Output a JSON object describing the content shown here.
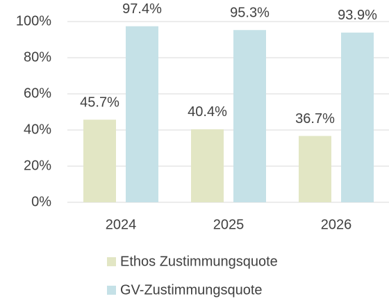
{
  "chart_data": {
    "type": "bar",
    "categories": [
      "2024",
      "2025",
      "2026"
    ],
    "series": [
      {
        "name": "Ethos Zustimmungsquote",
        "color": "#e2e6c4",
        "values": [
          45.7,
          40.4,
          36.7
        ],
        "value_labels": [
          "45.7%",
          "40.4%",
          "36.7%"
        ]
      },
      {
        "name": "GV-Zustimmungsquote",
        "color": "#c5e1e7",
        "values": [
          97.4,
          95.3,
          93.9
        ],
        "value_labels": [
          "97.4%",
          "95.3%",
          "93.9%"
        ]
      }
    ],
    "ylim": [
      0,
      100
    ],
    "yticks": [
      {
        "value": 0,
        "label": "0%"
      },
      {
        "value": 20,
        "label": "20%"
      },
      {
        "value": 40,
        "label": "40%"
      },
      {
        "value": 60,
        "label": "60%"
      },
      {
        "value": 80,
        "label": "80%"
      },
      {
        "value": 100,
        "label": "100%"
      }
    ],
    "grid": true,
    "legend": "bottom"
  }
}
